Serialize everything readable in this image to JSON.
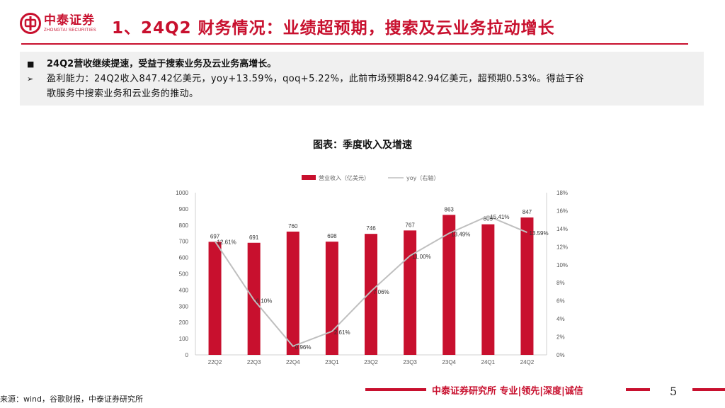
{
  "header": {
    "logo_cn": "中泰证券",
    "logo_en": "ZHONGTAI SECURITIES",
    "title": "1、24Q2 财务情况：业绩超预期，搜索及云业务拉动增长",
    "brand_color": "#c8102e"
  },
  "summary": {
    "bullet_marker": "■",
    "headline": "24Q2营收继续提速，受益于搜索业务及云业务高增长。",
    "sub_marker": "➢",
    "body_line1": "盈利能力：24Q2收入847.42亿美元，yoy+13.59%，qoq+5.22%，此前市场预期842.94亿美元，超预期0.53%。得益于谷",
    "body_line2": "歌服务中搜索业务和云业务的推动。"
  },
  "chart_data": {
    "type": "bar",
    "title": "图表：季度收入及增速",
    "categories": [
      "22Q2",
      "22Q3",
      "22Q4",
      "23Q1",
      "23Q2",
      "23Q3",
      "23Q4",
      "24Q1",
      "24Q2"
    ],
    "series": [
      {
        "name": "营业收入（亿美元）",
        "type": "bar",
        "axis": "left",
        "color": "#c8102e",
        "values": [
          697,
          691,
          760,
          698,
          746,
          767,
          863,
          805,
          847
        ],
        "labels": [
          "697",
          "691",
          "760",
          "698",
          "746",
          "767",
          "863",
          "805",
          "847"
        ]
      },
      {
        "name": "yoy（右轴）",
        "type": "line",
        "axis": "right",
        "color": "#bfbfbf",
        "values": [
          12.61,
          6.1,
          0.96,
          2.61,
          7.06,
          11.0,
          13.49,
          15.41,
          13.59
        ],
        "labels": [
          "12.61%",
          "6.10%",
          "0.96%",
          "2.61%",
          "7.06%",
          "11.00%",
          "13.49%",
          "15.41%",
          "13.59%"
        ]
      }
    ],
    "y_left": {
      "min": 0,
      "max": 1000,
      "ticks": [
        "0",
        "100",
        "200",
        "300",
        "400",
        "500",
        "600",
        "700",
        "800",
        "900",
        "1000"
      ]
    },
    "y_right": {
      "min": 0,
      "max": 18,
      "ticks": [
        "0%",
        "2%",
        "4%",
        "6%",
        "8%",
        "10%",
        "12%",
        "14%",
        "16%",
        "18%"
      ]
    },
    "grid": false,
    "legend_position": "top"
  },
  "footer": {
    "source": "来源：wind，谷歌财报，中泰证券研究所",
    "slogan": "中泰证券研究所 专业|领先|深度|诚信",
    "page_number": "5"
  }
}
